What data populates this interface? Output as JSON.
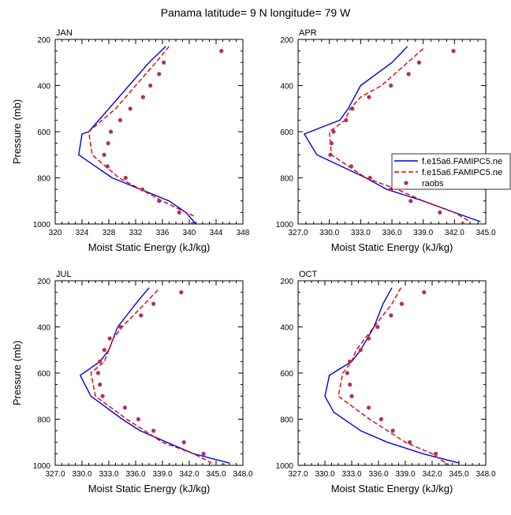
{
  "title": "Panama  latitude= 9 N longitude= 79 W",
  "colors": {
    "model1": "#0000dd",
    "model2": "#dd0000",
    "raobs": "#b03060"
  },
  "legend": {
    "location": "right of APR panel",
    "entries": [
      {
        "label": "f.e15a6.FAMIPC5.ne",
        "style": "solid"
      },
      {
        "label": "f.e15a6.FAMIPC5.ne",
        "style": "dashed"
      },
      {
        "label": "raobs",
        "style": "dots"
      }
    ]
  },
  "chart_data": [
    {
      "type": "line",
      "panel": "JAN",
      "label": "JAN",
      "xlabel": "Moist Static Energy (kJ/kg)",
      "ylabel": "Pressure (mb)",
      "xlim": [
        320,
        348
      ],
      "xticks": [
        320,
        324,
        328,
        332,
        336,
        340,
        344,
        348
      ],
      "xtick_labels": [
        "320",
        "324",
        "328",
        "332",
        "336",
        "340",
        "344",
        "348"
      ],
      "ylim": [
        200,
        1000
      ],
      "yticks": [
        200,
        400,
        600,
        800,
        1000
      ],
      "ytick_labels": [
        "200",
        "400",
        "600",
        "800",
        "1000"
      ],
      "yinvert": true,
      "series": [
        {
          "style": "solid",
          "p": [
            230,
            300,
            400,
            500,
            600,
            610,
            700,
            800,
            900,
            950,
            1000
          ],
          "x": [
            336.5,
            334,
            331,
            328,
            325,
            324,
            323.5,
            328.5,
            337,
            339.5,
            341
          ]
        },
        {
          "style": "dashed",
          "p": [
            230,
            300,
            400,
            500,
            600,
            700,
            800,
            900,
            950,
            970
          ],
          "x": [
            337,
            335,
            332,
            329,
            325,
            325.5,
            329.5,
            336,
            339.5,
            341
          ]
        },
        {
          "style": "dots",
          "p": [
            250,
            300,
            350,
            400,
            450,
            500,
            550,
            600,
            650,
            700,
            750,
            800,
            850,
            900,
            950,
            1000
          ],
          "x": [
            344.8,
            336.2,
            335.5,
            334.2,
            333.1,
            331.2,
            329.7,
            328.3,
            327.9,
            327.3,
            327.8,
            330.5,
            333.0,
            335.5,
            338.5,
            340.5
          ]
        }
      ]
    },
    {
      "type": "line",
      "panel": "APR",
      "label": "APR",
      "xlabel": "Moist Static Energy (kJ/kg)",
      "ylabel": "",
      "xlim": [
        327,
        345
      ],
      "xticks": [
        327,
        330,
        333,
        336,
        339,
        342,
        345
      ],
      "xtick_labels": [
        "327.0",
        "330.0",
        "333.0",
        "336.0",
        "339.0",
        "342.0",
        "345.0"
      ],
      "ylim": [
        200,
        1000
      ],
      "yticks": [
        200,
        400,
        600,
        800,
        1000
      ],
      "ytick_labels": [
        "200",
        "400",
        "600",
        "800",
        "1000"
      ],
      "yinvert": true,
      "series": [
        {
          "style": "solid",
          "p": [
            230,
            300,
            400,
            500,
            550,
            610,
            700,
            800,
            850,
            900,
            950,
            990
          ],
          "x": [
            337.5,
            336.0,
            333.0,
            331.8,
            331.0,
            327.6,
            328.8,
            333.5,
            335.5,
            339.0,
            342.0,
            344.5
          ]
        },
        {
          "style": "dashed",
          "p": [
            240,
            300,
            400,
            450,
            500,
            550,
            600,
            700,
            800,
            850,
            900,
            950,
            990
          ],
          "x": [
            339.0,
            337.5,
            335.0,
            333.0,
            332.0,
            331.5,
            330.0,
            330.2,
            333.5,
            336.5,
            339.0,
            342.0,
            343.5
          ]
        },
        {
          "style": "dots",
          "p": [
            250,
            300,
            350,
            400,
            450,
            500,
            550,
            600,
            650,
            700,
            750,
            800,
            850,
            900,
            950,
            1000
          ],
          "x": [
            341.9,
            338.6,
            337.6,
            335.9,
            333.8,
            332.2,
            331.6,
            330.4,
            330.2,
            330.1,
            332.1,
            333.9,
            335.9,
            337.8,
            340.6,
            342.8
          ]
        }
      ]
    },
    {
      "type": "line",
      "panel": "JUL",
      "label": "JUL",
      "xlabel": "Moist Static Energy (kJ/kg)",
      "ylabel": "Pressure (mb)",
      "xlim": [
        327,
        348
      ],
      "xticks": [
        327,
        330,
        333,
        336,
        339,
        342,
        345,
        348
      ],
      "xtick_labels": [
        "327.0",
        "330.0",
        "333.0",
        "336.0",
        "339.0",
        "342.0",
        "345.0",
        "348.0"
      ],
      "ylim": [
        200,
        1000
      ],
      "yticks": [
        200,
        400,
        600,
        800,
        1000
      ],
      "ytick_labels": [
        "200",
        "400",
        "600",
        "800",
        "1000"
      ],
      "yinvert": true,
      "series": [
        {
          "style": "solid",
          "p": [
            230,
            300,
            400,
            500,
            550,
            610,
            700,
            800,
            850,
            900,
            950,
            990
          ],
          "x": [
            337.5,
            336.0,
            334.0,
            333.0,
            332.0,
            329.8,
            331.0,
            334.5,
            336.5,
            339.5,
            342.5,
            346.5
          ]
        },
        {
          "style": "dashed",
          "p": [
            240,
            300,
            400,
            450,
            500,
            550,
            600,
            700,
            800,
            850,
            900,
            950,
            990
          ],
          "x": [
            338.5,
            337.0,
            334.5,
            333.5,
            333.0,
            332.5,
            331.0,
            331.5,
            335.0,
            337.0,
            339.0,
            342.5,
            344.5
          ]
        },
        {
          "style": "dots",
          "p": [
            250,
            300,
            350,
            400,
            450,
            500,
            550,
            600,
            650,
            700,
            750,
            800,
            850,
            900,
            950,
            1000
          ],
          "x": [
            341.1,
            338.0,
            336.6,
            334.3,
            333.1,
            332.5,
            332.0,
            331.8,
            332.0,
            332.3,
            334.8,
            336.3,
            338.0,
            341.4,
            343.6,
            345.8
          ]
        }
      ]
    },
    {
      "type": "line",
      "panel": "OCT",
      "label": "OCT",
      "xlabel": "Moist Static Energy (kJ/kg)",
      "ylabel": "",
      "xlim": [
        327,
        348
      ],
      "xticks": [
        327,
        330,
        333,
        336,
        339,
        342,
        345,
        348
      ],
      "xtick_labels": [
        "327.0",
        "330.0",
        "333.0",
        "336.0",
        "339.0",
        "342.0",
        "345.0",
        "348.0"
      ],
      "ylim": [
        200,
        1000
      ],
      "yticks": [
        200,
        400,
        600,
        800,
        1000
      ],
      "ytick_labels": [
        "200",
        "400",
        "600",
        "800",
        "1000"
      ],
      "yinvert": true,
      "series": [
        {
          "style": "solid",
          "p": [
            230,
            300,
            400,
            500,
            550,
            610,
            700,
            770,
            850,
            900,
            950,
            990
          ],
          "x": [
            337.5,
            336.5,
            335.5,
            334.0,
            333.0,
            330.5,
            330.0,
            331.0,
            334.0,
            337.0,
            341.0,
            345.0
          ]
        },
        {
          "style": "dashed",
          "p": [
            230,
            300,
            400,
            450,
            500,
            550,
            600,
            700,
            800,
            850,
            900,
            950,
            990
          ],
          "x": [
            338.5,
            337.5,
            335.5,
            334.5,
            333.5,
            333.0,
            332.0,
            331.5,
            335.0,
            337.0,
            339.0,
            342.0,
            343.5
          ]
        },
        {
          "style": "dots",
          "p": [
            250,
            300,
            350,
            400,
            450,
            500,
            550,
            600,
            650,
            700,
            750,
            800,
            850,
            900,
            950,
            1000
          ],
          "x": [
            341.1,
            338.6,
            337.4,
            335.9,
            334.9,
            334.0,
            332.8,
            332.5,
            332.8,
            333.0,
            334.9,
            336.3,
            337.6,
            339.5,
            342.4,
            343.7
          ]
        }
      ]
    }
  ]
}
